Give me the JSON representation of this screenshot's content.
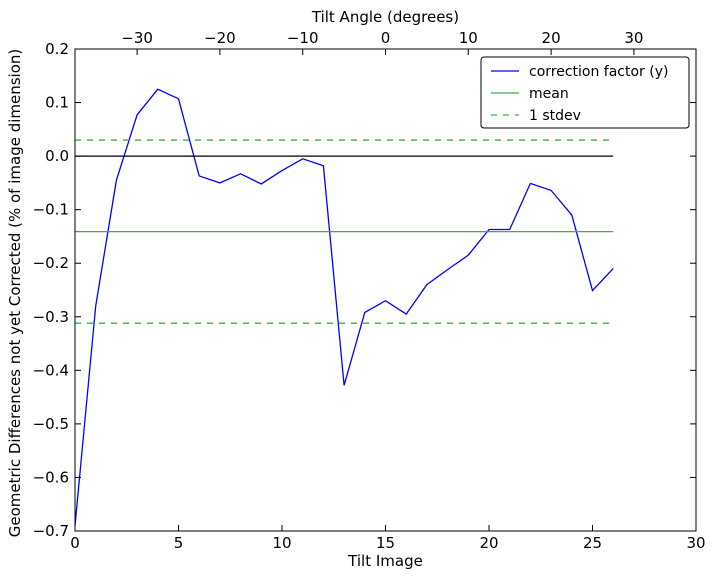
{
  "chart_data": {
    "type": "line",
    "xlabel": "Tilt Image",
    "ylabel": "Geometric Differences not yet Corrected (% of image dimension)",
    "top_xlabel": "Tilt Angle (degrees)",
    "xlim": [
      0,
      30
    ],
    "ylim": [
      -0.7,
      0.2
    ],
    "top_xlim": [
      -37.5,
      37.5
    ],
    "x_ticks": [
      0,
      5,
      10,
      15,
      20,
      25,
      30
    ],
    "y_ticks": [
      -0.7,
      -0.6,
      -0.5,
      -0.4,
      -0.3,
      -0.2,
      -0.1,
      0.0,
      0.1,
      0.2
    ],
    "top_ticks": [
      -30,
      -20,
      -10,
      0,
      10,
      20,
      30
    ],
    "x_tick_labels": [
      "0",
      "5",
      "10",
      "15",
      "20",
      "25",
      "30"
    ],
    "y_tick_labels": [
      "−0.7",
      "−0.6",
      "−0.5",
      "−0.4",
      "−0.3",
      "−0.2",
      "−0.1",
      "0.0",
      "0.1",
      "0.2"
    ],
    "top_tick_labels": [
      "−30",
      "−20",
      "−10",
      "0",
      "10",
      "20",
      "30"
    ],
    "grid": false,
    "legend_position": "top-right",
    "series": [
      {
        "name": "correction factor (y)",
        "color": "#0000ff",
        "style": "solid",
        "x": [
          0,
          1,
          2,
          3,
          4,
          5,
          6,
          7,
          8,
          9,
          10,
          11,
          12,
          13,
          14,
          15,
          16,
          17,
          18,
          19,
          20,
          21,
          22,
          23,
          24,
          25,
          26
        ],
        "y": [
          -0.69,
          -0.28,
          -0.045,
          0.077,
          0.125,
          0.107,
          -0.037,
          -0.05,
          -0.033,
          -0.052,
          -0.027,
          -0.005,
          -0.018,
          -0.428,
          -0.292,
          -0.27,
          -0.295,
          -0.24,
          -0.212,
          -0.185,
          -0.137,
          -0.137,
          -0.051,
          -0.064,
          -0.11,
          -0.251,
          -0.21
        ]
      },
      {
        "name": "mean",
        "color": "#3cb043",
        "style": "solid",
        "x": [
          0,
          26
        ],
        "y": [
          -0.141,
          -0.141
        ]
      },
      {
        "name": "1 stdev",
        "color": "#3cb043",
        "style": "dashed",
        "x": [
          0,
          26
        ],
        "y": [
          0.03,
          0.03
        ]
      },
      {
        "name": "",
        "color": "#3cb043",
        "style": "dashed",
        "x": [
          0,
          26
        ],
        "y": [
          -0.312,
          -0.312
        ]
      },
      {
        "name": "",
        "color": "#000000",
        "style": "solid",
        "x": [
          0,
          26
        ],
        "y": [
          0.0,
          0.0
        ]
      }
    ],
    "legend": [
      "correction factor (y)",
      "mean",
      "1 stdev"
    ]
  }
}
